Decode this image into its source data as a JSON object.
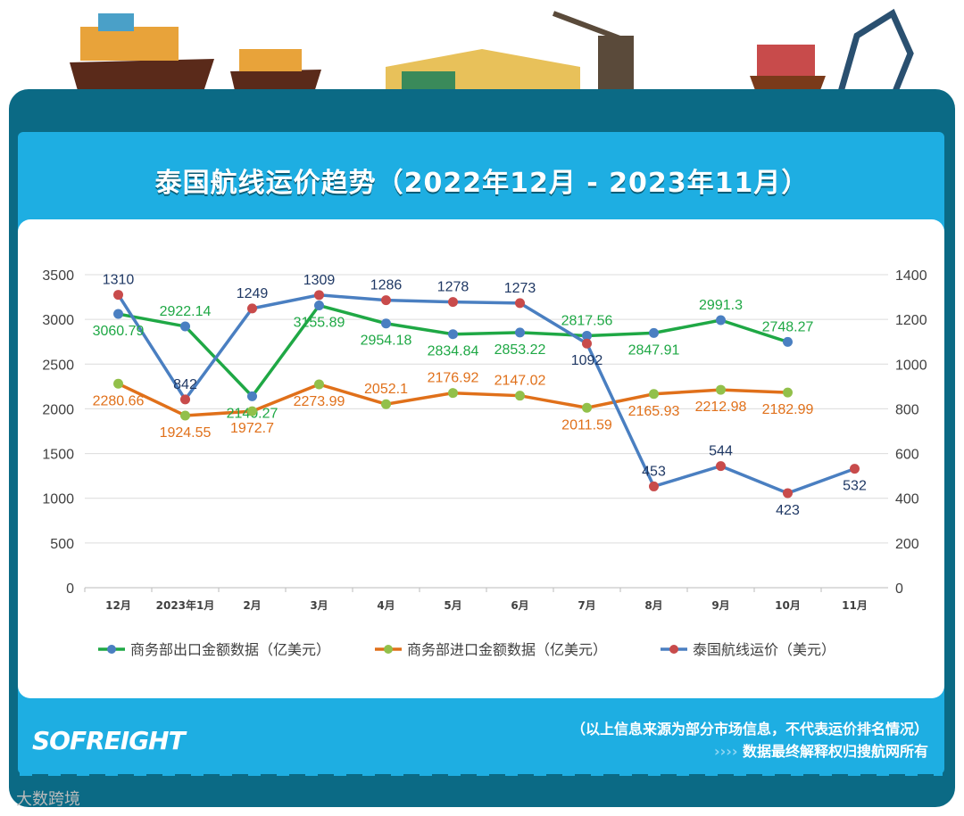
{
  "title": "泰国航线运价趋势（2022年12月 - 2023年11月）",
  "footer": {
    "note1": "（以上信息来源为部分市场信息，不代表运价排名情况）",
    "note2": "数据最终解释权归搜航网所有",
    "arrows": "››››",
    "logo": "SOFREIGHT",
    "watermark": "大数跨境"
  },
  "chart_data": {
    "type": "line",
    "categories": [
      "12月",
      "2023年1月",
      "2月",
      "3月",
      "4月",
      "5月",
      "6月",
      "7月",
      "8月",
      "9月",
      "10月",
      "11月"
    ],
    "y_left": {
      "range": [
        0,
        3500
      ],
      "ticks": [
        0,
        500,
        1000,
        1500,
        2000,
        2500,
        3000,
        3500
      ]
    },
    "y_right": {
      "range": [
        0,
        1400
      ],
      "ticks": [
        0,
        200,
        400,
        600,
        800,
        1000,
        1200,
        1400
      ]
    },
    "grid": true,
    "legend": "bottom",
    "series": [
      {
        "name": "商务部出口金额数据（亿美元）",
        "axis": "left",
        "color": "#1fa845",
        "marker": "#4a7fc1",
        "values": [
          3060.79,
          2922.14,
          2140.27,
          3155.89,
          2954.18,
          2834.84,
          2853.22,
          2817.56,
          2847.91,
          2991.3,
          2748.27,
          null
        ],
        "label_color": "#1fa845"
      },
      {
        "name": "商务部进口金额数据（亿美元）",
        "axis": "left",
        "color": "#e0701a",
        "marker": "#92c04a",
        "values": [
          2280.66,
          1924.55,
          1972.7,
          2273.99,
          2052.1,
          2176.92,
          2147.02,
          2011.59,
          2165.93,
          2212.98,
          2182.99,
          null
        ],
        "label_color": "#e0701a"
      },
      {
        "name": "泰国航线运价（美元）",
        "axis": "right",
        "color": "#4a7fc1",
        "marker": "#c84b4b",
        "values": [
          1310,
          842,
          1249,
          1309,
          1286,
          1278,
          1273,
          1092,
          453,
          544,
          423,
          532
        ],
        "label_color": "#1f3864"
      }
    ]
  }
}
